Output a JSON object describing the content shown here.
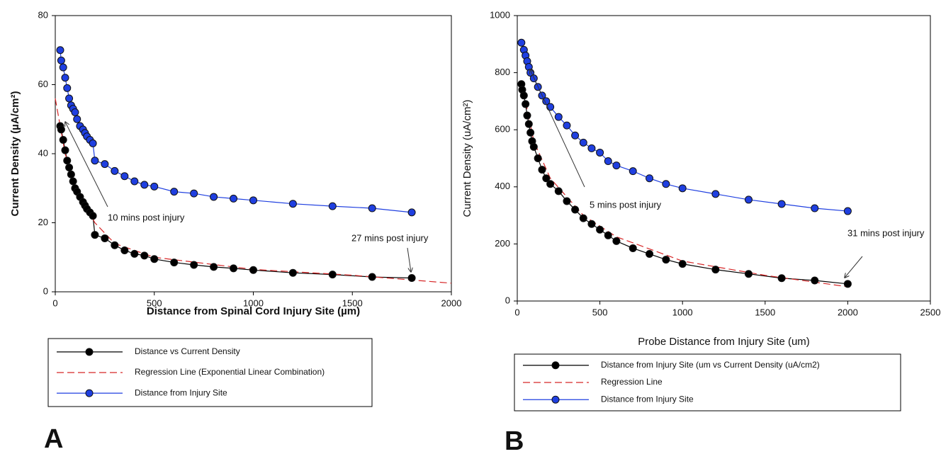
{
  "chart_data": [
    {
      "type": "line",
      "panel_label": "A",
      "x_label": "Distance from Spinal Cord Injury Site (µm)",
      "y_label": "Current Density (µA/cm²)",
      "xlim": [
        0,
        2000
      ],
      "xticks": [
        0,
        500,
        1000,
        1500,
        2000
      ],
      "ylim": [
        0,
        80
      ],
      "yticks": [
        0,
        20,
        40,
        60,
        80
      ],
      "annotations": [
        "10 mins post injury",
        "27 mins post injury"
      ],
      "series": [
        {
          "name": "Distance vs Current Density",
          "color": "#000000",
          "marker": "circle",
          "line_style": "solid",
          "x": [
            25,
            30,
            40,
            50,
            60,
            70,
            80,
            90,
            100,
            110,
            125,
            140,
            150,
            160,
            175,
            190,
            200,
            250,
            300,
            350,
            400,
            450,
            500,
            600,
            700,
            800,
            900,
            1000,
            1200,
            1400,
            1600,
            1800
          ],
          "values": [
            48,
            47,
            44,
            41,
            38,
            36,
            34,
            32,
            30,
            29,
            27.5,
            26,
            25,
            24,
            23,
            22,
            16.5,
            15.5,
            13.5,
            12,
            11,
            10.5,
            9.5,
            8.5,
            7.8,
            7.2,
            6.8,
            6.3,
            5.5,
            5,
            4.3,
            4
          ]
        },
        {
          "name": "Regression Line (Exponential Linear Combination)",
          "color": "#d62728",
          "marker": null,
          "line_style": "dashed",
          "x": [
            0,
            50,
            100,
            200,
            300,
            500,
            1000,
            1500,
            2000
          ],
          "values": [
            56,
            40,
            31,
            20,
            14,
            10,
            6.5,
            4.8,
            2.5
          ]
        },
        {
          "name": "Distance from Injury Site",
          "color": "#1f3fe0",
          "marker": "circle",
          "line_style": "solid",
          "x": [
            25,
            30,
            40,
            50,
            60,
            70,
            80,
            90,
            100,
            110,
            125,
            140,
            150,
            160,
            175,
            190,
            200,
            250,
            300,
            350,
            400,
            450,
            500,
            600,
            700,
            800,
            900,
            1000,
            1200,
            1400,
            1600,
            1800
          ],
          "values": [
            70,
            67,
            65,
            62,
            59,
            56,
            54,
            53,
            52,
            50,
            48,
            47,
            46,
            45,
            44,
            43,
            38,
            37,
            35,
            33.5,
            32,
            31,
            30.5,
            29,
            28.5,
            27.5,
            27,
            26.5,
            25.5,
            24.8,
            24.2,
            23
          ]
        }
      ]
    },
    {
      "type": "line",
      "panel_label": "B",
      "x_label": "Probe Distance from Injury Site (um)",
      "y_label": "Current Density (uA/cm²)",
      "xlim": [
        0,
        2500
      ],
      "xticks": [
        0,
        500,
        1000,
        1500,
        2000,
        2500
      ],
      "ylim": [
        0,
        1000
      ],
      "yticks": [
        0,
        200,
        400,
        600,
        800,
        1000
      ],
      "annotations": [
        "5 mins post injury",
        "31 mins post injury"
      ],
      "series": [
        {
          "name": "Distance from Injury Site (um vs Current Density (uA/cm2)",
          "color": "#000000",
          "marker": "circle",
          "line_style": "solid",
          "x": [
            25,
            30,
            40,
            50,
            60,
            70,
            80,
            90,
            100,
            125,
            150,
            175,
            200,
            250,
            300,
            350,
            400,
            450,
            500,
            550,
            600,
            700,
            800,
            900,
            1000,
            1200,
            1400,
            1600,
            1800,
            2000
          ],
          "values": [
            760,
            740,
            720,
            690,
            650,
            620,
            590,
            560,
            540,
            500,
            460,
            430,
            410,
            385,
            350,
            320,
            290,
            270,
            250,
            230,
            210,
            185,
            165,
            145,
            130,
            110,
            95,
            80,
            72,
            60
          ]
        },
        {
          "name": "Regression Line",
          "color": "#d62728",
          "marker": null,
          "line_style": "dashed",
          "x": [
            25,
            100,
            200,
            400,
            600,
            1000,
            1500,
            2000
          ],
          "values": [
            770,
            560,
            430,
            300,
            225,
            140,
            90,
            50
          ]
        },
        {
          "name": "Distance from Injury Site",
          "color": "#1f3fe0",
          "marker": "circle",
          "line_style": "solid",
          "x": [
            25,
            40,
            50,
            60,
            70,
            80,
            100,
            125,
            150,
            175,
            200,
            250,
            300,
            350,
            400,
            450,
            500,
            550,
            600,
            700,
            800,
            900,
            1000,
            1200,
            1400,
            1600,
            1800,
            2000
          ],
          "values": [
            905,
            880,
            860,
            840,
            820,
            800,
            780,
            750,
            720,
            700,
            680,
            645,
            615,
            580,
            555,
            535,
            520,
            490,
            475,
            455,
            430,
            410,
            395,
            375,
            355,
            340,
            325,
            315
          ]
        }
      ]
    }
  ]
}
